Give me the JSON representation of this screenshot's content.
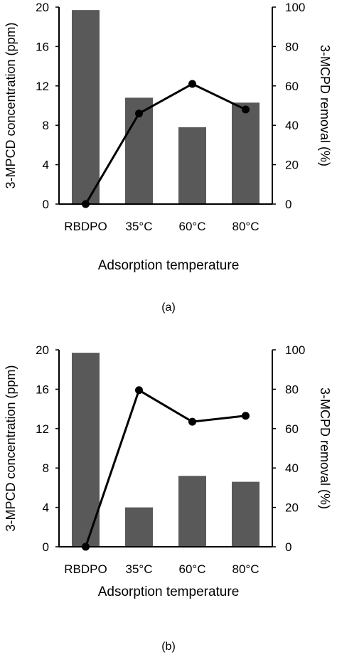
{
  "chart_data": [
    {
      "type": "bar",
      "panel_label": "(a)",
      "categories": [
        "RBDPO",
        "35°C",
        "60°C",
        "80°C"
      ],
      "series": [
        {
          "kind": "bar",
          "axis": "left",
          "values": [
            19.7,
            10.8,
            7.8,
            10.3
          ]
        },
        {
          "kind": "line",
          "axis": "right",
          "values": [
            0,
            46,
            61,
            48
          ]
        }
      ],
      "xlabel": "Adsorption temperature",
      "ylabel": "3-MPCD concentration (ppm)",
      "ylabel_right": "3-MCPD removal (%)",
      "ylim": [
        0,
        20
      ],
      "yticks": [
        "0",
        "4",
        "8",
        "12",
        "16",
        "20"
      ],
      "ylim_right": [
        0,
        100
      ],
      "yticks_right": [
        "0",
        "20",
        "40",
        "60",
        "80",
        "100"
      ],
      "grid": false,
      "bar_color": "#595959",
      "line_color": "#000000"
    },
    {
      "type": "bar",
      "panel_label": "(b)",
      "categories": [
        "RBDPO",
        "35°C",
        "60°C",
        "80°C"
      ],
      "series": [
        {
          "kind": "bar",
          "axis": "left",
          "values": [
            19.7,
            4.0,
            7.2,
            6.6
          ]
        },
        {
          "kind": "line",
          "axis": "right",
          "values": [
            0,
            79.5,
            63.5,
            66.5
          ]
        }
      ],
      "xlabel": "Adsorption temperature",
      "ylabel": "3-MPCD concentration (ppm)",
      "ylabel_right": "3-MCPD removal (%)",
      "ylim": [
        0,
        20
      ],
      "yticks": [
        "0",
        "4",
        "8",
        "12",
        "16",
        "20"
      ],
      "ylim_right": [
        0,
        100
      ],
      "yticks_right": [
        "0",
        "20",
        "40",
        "60",
        "80",
        "100"
      ],
      "grid": false,
      "bar_color": "#595959",
      "line_color": "#000000"
    }
  ]
}
